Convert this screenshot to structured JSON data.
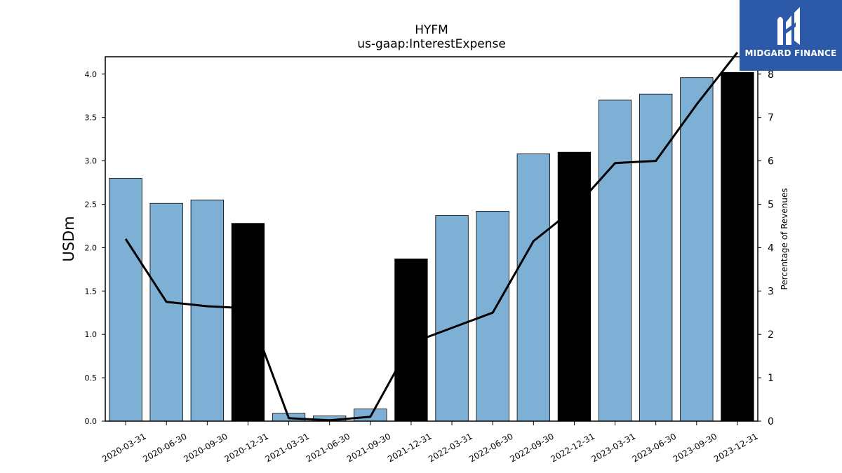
{
  "chart_data": {
    "type": "bar",
    "title": "HYFM",
    "subtitle": "us-gaap:InterestExpense",
    "ylabel": "USDm",
    "y2label": "Percentage of Revenues",
    "ylim": [
      0,
      4.2
    ],
    "y2lim": [
      0,
      8.4
    ],
    "yticks": [
      "0.0",
      "0.5",
      "1.0",
      "1.5",
      "2.0",
      "2.5",
      "3.0",
      "3.5",
      "4.0"
    ],
    "y2ticks": [
      "0",
      "1",
      "2",
      "3",
      "4",
      "5",
      "6",
      "7",
      "8"
    ],
    "categories": [
      "2020-03-31",
      "2020-06-30",
      "2020-09-30",
      "2020-12-31",
      "2021-03-31",
      "2021-06-30",
      "2021-09-30",
      "2021-12-31",
      "2022-03-31",
      "2022-06-30",
      "2022-09-30",
      "2022-12-31",
      "2023-03-31",
      "2023-06-30",
      "2023-09-30",
      "2023-12-31"
    ],
    "series": [
      {
        "type": "bar",
        "values": [
          2.8,
          2.51,
          2.55,
          2.28,
          0.09,
          0.06,
          0.14,
          1.87,
          2.37,
          2.42,
          3.08,
          3.1,
          3.7,
          3.77,
          3.96,
          4.02
        ],
        "colors": [
          "#7eb0d5",
          "#7eb0d5",
          "#7eb0d5",
          "#000000",
          "#7eb0d5",
          "#7eb0d5",
          "#7eb0d5",
          "#000000",
          "#7eb0d5",
          "#7eb0d5",
          "#7eb0d5",
          "#000000",
          "#7eb0d5",
          "#7eb0d5",
          "#7eb0d5",
          "#000000"
        ]
      },
      {
        "type": "line",
        "axis": "right",
        "color": "#000000",
        "values": [
          4.2,
          2.75,
          2.65,
          2.6,
          0.07,
          0.02,
          0.1,
          1.8,
          2.15,
          2.5,
          4.15,
          4.9,
          5.95,
          6.0,
          7.3,
          8.5
        ]
      }
    ],
    "grid": false
  },
  "logo": {
    "text": "MIDGARD FINANCE",
    "bg": "#2d5aa8"
  }
}
